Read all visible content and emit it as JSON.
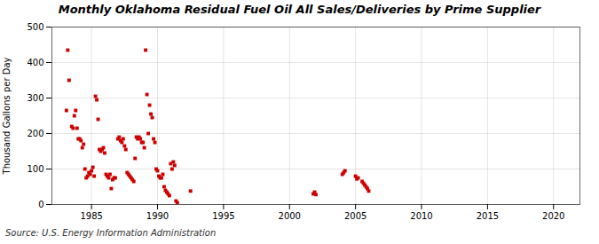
{
  "chart_data": {
    "type": "scatter",
    "title": "Monthly Oklahoma Residual Fuel Oil All Sales/Deliveries by Prime Supplier",
    "ylabel": "Thousand Gallons per Day",
    "source": "Source: U.S. Energy Information Administration",
    "color": "#cc0000",
    "marker": "square",
    "grid": true,
    "xlim": [
      1982,
      2022
    ],
    "xticks": [
      1985,
      1990,
      1995,
      2000,
      2005,
      2010,
      2015,
      2020
    ],
    "ylim": [
      0,
      500
    ],
    "yticks": [
      0,
      100,
      200,
      300,
      400,
      500
    ],
    "x": [
      1983.1,
      1983.2,
      1983.3,
      1983.5,
      1983.6,
      1983.7,
      1983.8,
      1983.9,
      1984.0,
      1984.1,
      1984.2,
      1984.3,
      1984.4,
      1984.5,
      1984.6,
      1984.7,
      1984.8,
      1984.9,
      1985.0,
      1985.1,
      1985.2,
      1985.3,
      1985.4,
      1985.5,
      1985.6,
      1985.7,
      1985.8,
      1985.9,
      1986.0,
      1986.1,
      1986.2,
      1986.3,
      1986.4,
      1986.5,
      1986.6,
      1986.7,
      1986.8,
      1987.0,
      1987.1,
      1987.2,
      1987.3,
      1987.4,
      1987.5,
      1987.6,
      1987.7,
      1987.8,
      1987.9,
      1988.0,
      1988.1,
      1988.2,
      1988.3,
      1988.4,
      1988.5,
      1988.6,
      1988.7,
      1988.8,
      1988.9,
      1989.0,
      1989.1,
      1989.2,
      1989.3,
      1989.4,
      1989.5,
      1989.6,
      1989.7,
      1989.8,
      1989.9,
      1990.0,
      1990.1,
      1990.2,
      1990.3,
      1990.4,
      1990.5,
      1990.6,
      1990.7,
      1990.8,
      1990.9,
      1991.0,
      1991.1,
      1991.2,
      1991.3,
      1991.4,
      1991.5,
      1992.5,
      2001.8,
      2001.9,
      2002.0,
      2004.0,
      2004.1,
      2004.2,
      2005.0,
      2005.1,
      2005.2,
      2005.5,
      2005.6,
      2005.7,
      2005.8,
      2005.9,
      2006.0
    ],
    "values": [
      265,
      435,
      350,
      220,
      215,
      250,
      265,
      215,
      185,
      185,
      180,
      160,
      170,
      100,
      75,
      80,
      90,
      85,
      95,
      105,
      80,
      305,
      295,
      240,
      155,
      150,
      155,
      160,
      145,
      85,
      80,
      75,
      85,
      45,
      70,
      75,
      75,
      185,
      190,
      180,
      175,
      185,
      165,
      155,
      90,
      85,
      80,
      75,
      70,
      65,
      130,
      190,
      185,
      190,
      185,
      175,
      175,
      160,
      435,
      310,
      200,
      280,
      255,
      245,
      185,
      175,
      100,
      95,
      80,
      75,
      75,
      85,
      50,
      40,
      35,
      30,
      25,
      115,
      100,
      120,
      110,
      10,
      5,
      38,
      30,
      35,
      28,
      85,
      90,
      95,
      80,
      72,
      75,
      65,
      60,
      55,
      50,
      45,
      38
    ]
  }
}
